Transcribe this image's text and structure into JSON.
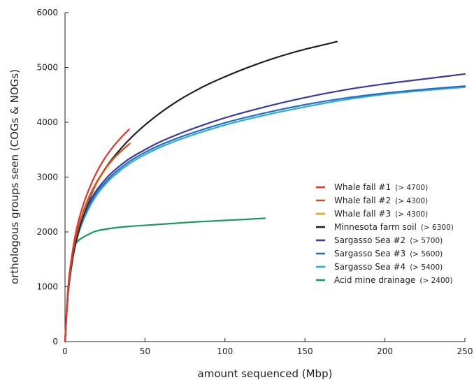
{
  "chart_data": {
    "type": "line",
    "xlabel": "amount sequenced (Mbp)",
    "ylabel": "orthologous groups seen (COGs & NOGs)",
    "xlim": [
      0,
      250
    ],
    "ylim": [
      0,
      6000
    ],
    "xticks": [
      0,
      50,
      100,
      150,
      200,
      250
    ],
    "yticks": [
      0,
      1000,
      2000,
      3000,
      4000,
      5000,
      6000
    ],
    "xtick_labels": [
      "0",
      "50",
      "100",
      "150",
      "200",
      "250"
    ],
    "ytick_labels": [
      "0",
      "1000",
      "2000",
      "3000",
      "4000",
      "5000",
      "6000"
    ],
    "grid": false,
    "legend_position": "right",
    "series": [
      {
        "name": "Whale fall #1",
        "note": "(> 4700)",
        "color": "#e8322c",
        "x": [
          0,
          2,
          5,
          8,
          12,
          16,
          20,
          25,
          30,
          35,
          40
        ],
        "y": [
          0,
          1000,
          1700,
          2150,
          2550,
          2850,
          3100,
          3350,
          3550,
          3720,
          3870
        ]
      },
      {
        "name": "Whale fall #2",
        "note": "(> 4300)",
        "color": "#c4522a",
        "x": [
          0,
          2,
          5,
          8,
          12,
          16,
          20,
          25,
          30,
          35,
          40
        ],
        "y": [
          0,
          950,
          1650,
          2050,
          2420,
          2700,
          2920,
          3150,
          3330,
          3470,
          3600
        ]
      },
      {
        "name": "Whale fall #3",
        "note": "(> 4300)",
        "color": "#f0a020",
        "x": [
          0,
          2,
          5,
          8,
          12,
          16,
          20,
          25,
          30,
          35,
          41
        ],
        "y": [
          0,
          950,
          1650,
          2050,
          2400,
          2680,
          2900,
          3130,
          3320,
          3470,
          3620
        ]
      },
      {
        "name": "Minnesota farm soil",
        "note": "(> 6300)",
        "color": "#231f20",
        "x": [
          0,
          2,
          5,
          8,
          12,
          16,
          20,
          25,
          30,
          40,
          50,
          60,
          70,
          80,
          90,
          100,
          110,
          120,
          130,
          140,
          150,
          160,
          170
        ],
        "y": [
          0,
          900,
          1550,
          1950,
          2350,
          2650,
          2900,
          3150,
          3350,
          3680,
          3950,
          4180,
          4380,
          4550,
          4700,
          4830,
          4950,
          5060,
          5160,
          5250,
          5330,
          5400,
          5470
        ]
      },
      {
        "name": "Sargasso Sea #2",
        "note": "(> 5700)",
        "color": "#3a3c9a",
        "x": [
          0,
          2,
          5,
          8,
          12,
          16,
          20,
          25,
          30,
          40,
          50,
          60,
          75,
          100,
          125,
          150,
          175,
          200,
          225,
          250
        ],
        "y": [
          0,
          950,
          1600,
          2000,
          2330,
          2580,
          2770,
          2950,
          3100,
          3330,
          3500,
          3650,
          3830,
          4080,
          4280,
          4450,
          4590,
          4700,
          4790,
          4880
        ]
      },
      {
        "name": "Sargasso Sea #3",
        "note": "(> 5600)",
        "color": "#2a6dbf",
        "x": [
          0,
          2,
          5,
          8,
          12,
          16,
          20,
          25,
          30,
          40,
          50,
          60,
          75,
          100,
          125,
          150,
          175,
          200,
          225,
          250
        ],
        "y": [
          0,
          950,
          1600,
          1980,
          2300,
          2540,
          2730,
          2900,
          3050,
          3280,
          3450,
          3590,
          3760,
          3990,
          4170,
          4320,
          4440,
          4530,
          4600,
          4660
        ]
      },
      {
        "name": "Sargasso Sea #4",
        "note": "(> 5400)",
        "color": "#29abe2",
        "x": [
          0,
          2,
          5,
          8,
          12,
          16,
          20,
          25,
          30,
          40,
          50,
          60,
          75,
          100,
          125,
          150,
          175,
          200,
          225,
          250
        ],
        "y": [
          0,
          900,
          1550,
          1930,
          2250,
          2490,
          2680,
          2860,
          3010,
          3240,
          3410,
          3550,
          3720,
          3950,
          4130,
          4280,
          4410,
          4510,
          4580,
          4640
        ]
      },
      {
        "name": "Acid mine drainage",
        "note": "(> 2400)",
        "color": "#1a9a5a",
        "x": [
          0,
          2,
          4,
          6,
          8,
          10,
          15,
          20,
          30,
          40,
          50,
          60,
          70,
          80,
          90,
          100,
          110,
          120,
          125
        ],
        "y": [
          0,
          1000,
          1500,
          1750,
          1830,
          1880,
          1960,
          2020,
          2070,
          2100,
          2120,
          2140,
          2160,
          2180,
          2195,
          2210,
          2225,
          2240,
          2250
        ]
      }
    ]
  }
}
